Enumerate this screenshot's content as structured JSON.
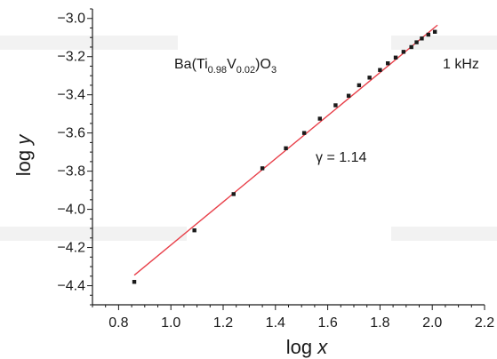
{
  "chart_data": {
    "type": "scatter",
    "title": "",
    "xlabel": "log x",
    "ylabel": "log y",
    "xlim": [
      0.7,
      2.2
    ],
    "ylim": [
      -4.5,
      -2.95
    ],
    "xticks": [
      0.8,
      1.0,
      1.2,
      1.4,
      1.6,
      1.8,
      2.0,
      2.2
    ],
    "xtick_labels": [
      "0.8",
      "1.0",
      "1.2",
      "1.4",
      "1.6",
      "1.8",
      "2.0",
      "2.2"
    ],
    "yticks": [
      -3.0,
      -3.2,
      -3.4,
      -3.6,
      -3.8,
      -4.0,
      -4.2,
      -4.4
    ],
    "ytick_labels": [
      "−3.0",
      "−3.2",
      "−3.4",
      "−3.6",
      "−3.8",
      "−4.0",
      "−4.2",
      "−4.4"
    ],
    "grid": false,
    "series": [
      {
        "x": [
          0.86,
          1.09,
          1.24,
          1.35,
          1.44,
          1.51,
          1.57,
          1.63,
          1.68,
          1.72,
          1.76,
          1.8,
          1.83,
          1.86,
          1.89,
          1.92,
          1.94,
          1.96,
          1.985,
          2.01
        ],
        "y": [
          -4.38,
          -4.11,
          -3.92,
          -3.785,
          -3.68,
          -3.6,
          -3.525,
          -3.455,
          -3.405,
          -3.35,
          -3.31,
          -3.27,
          -3.235,
          -3.205,
          -3.175,
          -3.15,
          -3.125,
          -3.105,
          -3.085,
          -3.07
        ],
        "color": "#1a1a1a"
      }
    ],
    "fit": {
      "x": [
        0.86,
        2.02
      ],
      "y": [
        -4.345,
        -3.035
      ],
      "color": "#e8404a"
    },
    "annotations": {
      "formula": {
        "base": "Ba(Ti",
        "sub1": "0.98",
        "mid": "V",
        "sub2": "0.02",
        "close": ")O",
        "sub3": "3"
      },
      "frequency": "1 kHz",
      "gamma": "γ = 1.14"
    }
  }
}
